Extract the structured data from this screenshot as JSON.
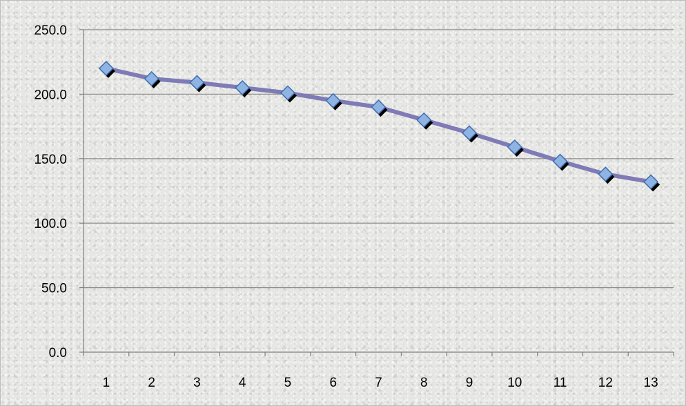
{
  "chart_data": {
    "type": "line",
    "title": "",
    "xlabel": "",
    "ylabel": "",
    "categories": [
      "1",
      "2",
      "3",
      "4",
      "5",
      "6",
      "7",
      "8",
      "9",
      "10",
      "11",
      "12",
      "13"
    ],
    "series": [
      {
        "values": [
          220,
          212,
          209,
          205,
          201,
          195,
          190,
          180,
          170,
          159,
          148,
          138,
          132
        ]
      }
    ],
    "ylim": [
      0,
      250
    ],
    "yticks": [
      "0.0",
      "50.0",
      "100.0",
      "150.0",
      "200.0",
      "250.0"
    ],
    "grid": "horizontal",
    "legend": "none",
    "colors": {
      "line": "#7e7bb6",
      "marker_fill": "#8fb4e3",
      "marker_stroke": "#3f6fb0",
      "marker_shadow": "#000000",
      "gridline": "#8c8c8c",
      "axis": "#7f7f7f",
      "background": "#e6e6e4"
    }
  }
}
